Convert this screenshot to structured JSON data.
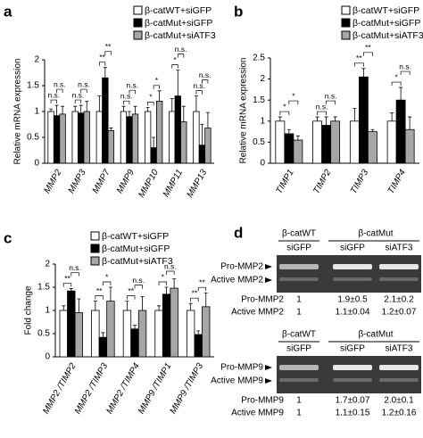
{
  "chart_data": [
    {
      "type": "bar",
      "panel_label": "a",
      "ylabel": "Relative mRNA  expression",
      "categories": [
        "MMP2",
        "MMP3",
        "MMP7",
        "MMP9",
        "MMP10",
        "MMP11",
        "MMP13"
      ],
      "series": [
        {
          "name": "β-catWT+siGFP",
          "color": "#ffffff",
          "values": [
            1,
            1,
            1,
            1,
            1,
            1,
            1
          ],
          "errors": [
            0.05,
            0.1,
            0.3,
            0.1,
            0.08,
            0.25,
            0.3
          ]
        },
        {
          "name": "β-catMut+siGFP",
          "color": "#000000",
          "values": [
            0.92,
            0.97,
            1.65,
            0.9,
            0.3,
            1.3,
            0.35
          ],
          "errors": [
            0.2,
            0.15,
            0.2,
            0.1,
            0.2,
            0.5,
            0.4
          ]
        },
        {
          "name": "β-catMut+siATF3",
          "color": "#a6a6a6",
          "values": [
            0.95,
            1.0,
            0.63,
            0.95,
            1.2,
            0.8,
            0.68
          ],
          "errors": [
            0.15,
            0.2,
            0.05,
            0.15,
            0.2,
            0.3,
            0.3
          ]
        }
      ],
      "significance": [
        [
          "n.s.",
          "n.s."
        ],
        [
          "n.s.",
          "n.s."
        ],
        [
          "**",
          "**"
        ],
        [
          "n.s.",
          "n.s."
        ],
        [
          "*",
          "*"
        ],
        [
          "*",
          "n.s."
        ],
        [
          "n.s.",
          "n.s."
        ]
      ],
      "ylim": [
        0,
        2
      ],
      "yticks": [
        0,
        0.5,
        1,
        1.5,
        2
      ]
    },
    {
      "type": "bar",
      "panel_label": "b",
      "ylabel": "Relative mRNA  expression",
      "categories": [
        "TIMP1",
        "TIMP2",
        "TIMP3",
        "TIMP4"
      ],
      "series": [
        {
          "name": "β-catWT+siGFP",
          "color": "#ffffff",
          "values": [
            1,
            1,
            1,
            1
          ],
          "errors": [
            0.1,
            0.1,
            0.3,
            0.2
          ]
        },
        {
          "name": "β-catMut+siGFP",
          "color": "#000000",
          "values": [
            0.7,
            0.9,
            2.05,
            1.5
          ],
          "errors": [
            0.1,
            0.2,
            0.2,
            0.3
          ]
        },
        {
          "name": "β-catMut+siATF3",
          "color": "#a6a6a6",
          "values": [
            0.55,
            1.0,
            0.75,
            0.8
          ],
          "errors": [
            0.1,
            0.1,
            0.05,
            0.3
          ]
        }
      ],
      "significance": [
        [
          "*",
          "*"
        ],
        [
          "n.s.",
          "n.s."
        ],
        [
          "**",
          "**"
        ],
        [
          "*",
          "n.s."
        ]
      ],
      "ylim": [
        0,
        2.5
      ],
      "yticks": [
        0,
        0.5,
        1,
        1.5,
        2,
        2.5
      ]
    },
    {
      "type": "bar",
      "panel_label": "c",
      "ylabel": "Fold change",
      "categories": [
        "MMP2 /TIMP2",
        "MMP2 /TIMP3",
        "MMP2 /TIMP4",
        "MMP9 /TIMP1",
        "MMP9 /TIMP3"
      ],
      "series": [
        {
          "name": "β-catWT+siGFP",
          "color": "#ffffff",
          "values": [
            1,
            1,
            1,
            1,
            1
          ],
          "errors": [
            0.1,
            0.2,
            0.2,
            0.1,
            0.15
          ]
        },
        {
          "name": "β-catMut+siGFP",
          "color": "#000000",
          "values": [
            1.42,
            0.42,
            0.6,
            1.35,
            0.48
          ],
          "errors": [
            0.05,
            0.1,
            0.08,
            0.15,
            0.08
          ]
        },
        {
          "name": "β-catMut+siATF3",
          "color": "#a6a6a6",
          "values": [
            0.95,
            1.2,
            1.0,
            1.48,
            1.08
          ],
          "errors": [
            0.3,
            0.3,
            0.3,
            0.2,
            0.3
          ]
        }
      ],
      "significance": [
        [
          "**",
          "n.s."
        ],
        [
          "**",
          "*"
        ],
        [
          "**",
          "n.s."
        ],
        [
          "*",
          "n.s."
        ],
        [
          "**",
          "**"
        ]
      ],
      "ylim": [
        0,
        2
      ],
      "yticks": [
        0,
        0.5,
        1,
        1.5,
        2
      ]
    }
  ],
  "panel_d": {
    "panel_label": "d",
    "blocks": [
      {
        "groups": [
          "β-catWT",
          "β-catMut"
        ],
        "lanes": [
          "siGFP",
          "siGFP",
          "siATF3"
        ],
        "band_labels": [
          "Pro-MMP2",
          "Active MMP2"
        ],
        "rows": [
          [
            "Pro-MMP2",
            "1",
            "1.9±0.5",
            "2.1±0.2"
          ],
          [
            "Active MMP2",
            "1",
            "1.1±0.04",
            "1.2±0.07"
          ]
        ]
      },
      {
        "groups": [
          "β-catWT",
          "β-catMut"
        ],
        "lanes": [
          "siGFP",
          "siGFP",
          "siATF3"
        ],
        "band_labels": [
          "Pro-MMP9",
          "Active MMP9"
        ],
        "rows": [
          [
            "Pro-MMP9",
            "1",
            "1.7±0.07",
            "2.0±0.1"
          ],
          [
            "Active MMP9",
            "1",
            "1.1±0.15",
            "1.2±0.16"
          ]
        ]
      }
    ]
  }
}
